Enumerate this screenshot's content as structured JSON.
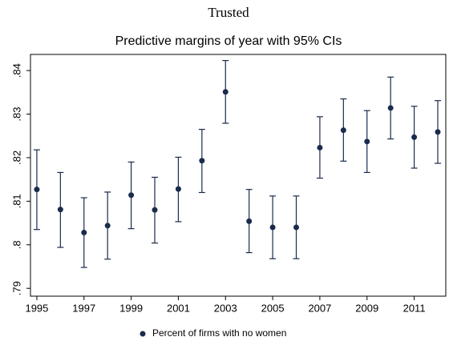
{
  "header": {
    "title": "Trusted"
  },
  "chart_data": {
    "type": "errorbar",
    "title": "Predictive margins of year with 95% CIs",
    "x": [
      1995,
      1996,
      1997,
      1998,
      1999,
      2000,
      2001,
      2002,
      2003,
      2004,
      2005,
      2006,
      2007,
      2008,
      2009,
      2010,
      2011,
      2012
    ],
    "series": [
      {
        "name": "Percent of firms with no women",
        "color": "#1a2b4c",
        "values": [
          0.8127,
          0.8081,
          0.8028,
          0.8044,
          0.8114,
          0.808,
          0.8128,
          0.8193,
          0.8351,
          0.8054,
          0.804,
          0.804,
          0.8223,
          0.8263,
          0.8237,
          0.8314,
          0.8247,
          0.8259
        ],
        "lower": [
          0.8035,
          0.7994,
          0.7948,
          0.7967,
          0.8037,
          0.8004,
          0.8053,
          0.812,
          0.8279,
          0.7982,
          0.7968,
          0.7968,
          0.8153,
          0.8192,
          0.8166,
          0.8243,
          0.8176,
          0.8187
        ],
        "upper": [
          0.8218,
          0.8166,
          0.8108,
          0.8121,
          0.819,
          0.8155,
          0.8201,
          0.8265,
          0.8423,
          0.8127,
          0.8112,
          0.8112,
          0.8294,
          0.8335,
          0.8308,
          0.8385,
          0.8318,
          0.8331
        ]
      }
    ],
    "xlim": [
      1994.73,
      2012.34
    ],
    "xticks": [
      1995,
      1997,
      1999,
      2001,
      2003,
      2005,
      2007,
      2009,
      2011
    ],
    "ylim": [
      0.7882,
      0.8437
    ],
    "yticks": [
      {
        "value": 0.79,
        "label": ".79"
      },
      {
        "value": 0.8,
        "label": ".8"
      },
      {
        "value": 0.81,
        "label": ".81"
      },
      {
        "value": 0.82,
        "label": ".82"
      },
      {
        "value": 0.83,
        "label": ".83"
      },
      {
        "value": 0.84,
        "label": ".84"
      }
    ],
    "grid": false,
    "legend": "bottom"
  }
}
